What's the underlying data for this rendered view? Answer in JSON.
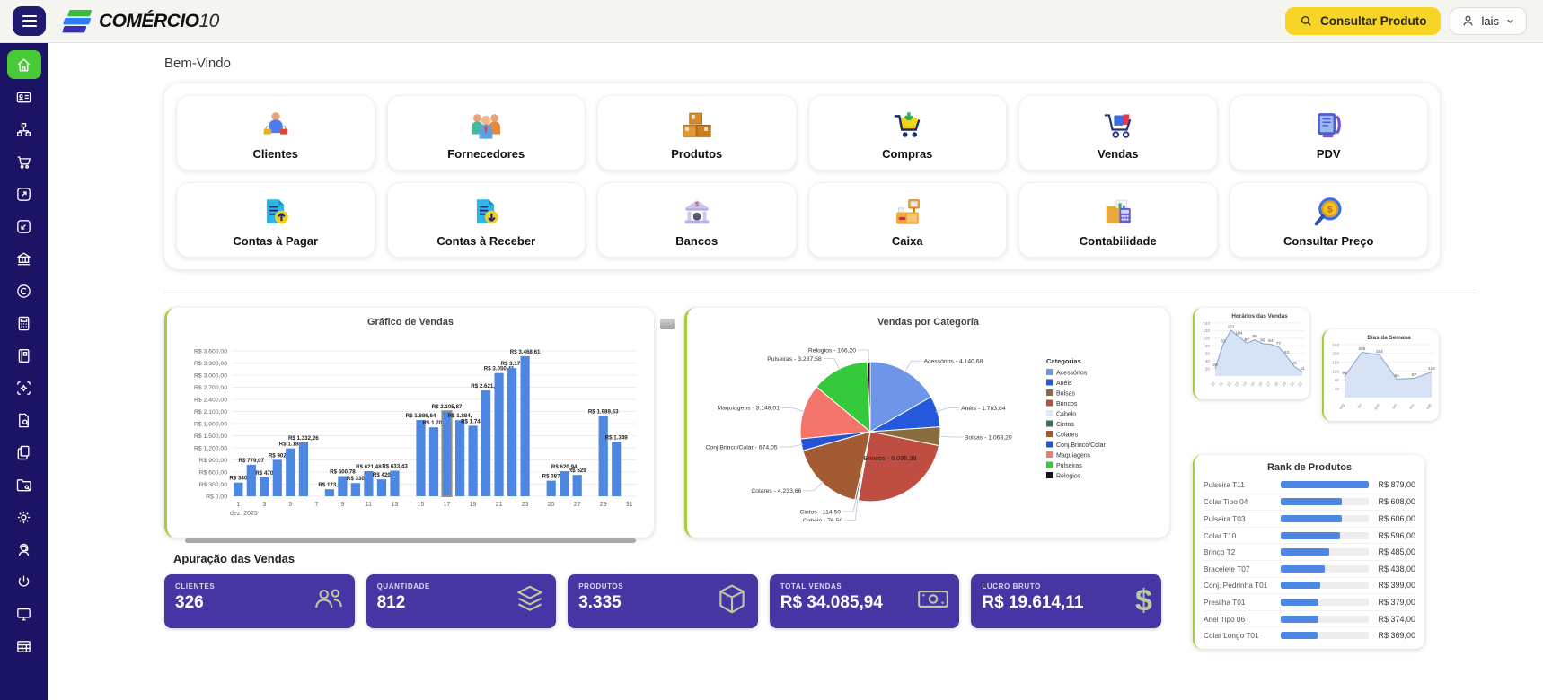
{
  "theme": {
    "sidebar_bg": "#1b1464",
    "active_green": "#47ca35",
    "accent_edge": "#a6ce39",
    "button_yellow": "#f7d526",
    "stat_purple": "#4636a3",
    "stat_icon_sage": "#b9cba4",
    "bar_blue": "#4d87e2"
  },
  "header": {
    "brand_main": "COMÉRCIO",
    "brand_suffix": "10",
    "search_button": "Consultar Produto",
    "user": "lais"
  },
  "sidebar": {
    "items": [
      {
        "icon": "home-icon",
        "active": true
      },
      {
        "icon": "id-card-icon"
      },
      {
        "icon": "sitemap-icon"
      },
      {
        "icon": "cart-icon"
      },
      {
        "icon": "arrow-out-icon"
      },
      {
        "icon": "arrow-in-icon"
      },
      {
        "icon": "bank-icon"
      },
      {
        "icon": "copyright-icon"
      },
      {
        "icon": "calculator-icon"
      },
      {
        "icon": "notebook-icon"
      },
      {
        "icon": "scan-icon"
      },
      {
        "icon": "document-search-icon"
      },
      {
        "icon": "copy-icon"
      },
      {
        "icon": "folder-wrench-icon"
      },
      {
        "icon": "gear-icon"
      },
      {
        "icon": "support-icon"
      },
      {
        "icon": "power-icon"
      },
      {
        "icon": "monitor-icon"
      },
      {
        "icon": "table-icon"
      }
    ]
  },
  "welcome": "Bem-Vindo",
  "shortcuts": [
    {
      "label": "Clientes",
      "icon": "clientes-icon"
    },
    {
      "label": "Fornecedores",
      "icon": "fornecedores-icon"
    },
    {
      "label": "Produtos",
      "icon": "produtos-icon"
    },
    {
      "label": "Compras",
      "icon": "compras-icon"
    },
    {
      "label": "Vendas",
      "icon": "vendas-icon"
    },
    {
      "label": "PDV",
      "icon": "pdv-icon"
    },
    {
      "label": "Contas à Pagar",
      "icon": "contas-pagar-icon"
    },
    {
      "label": "Contas à Receber",
      "icon": "contas-receber-icon"
    },
    {
      "label": "Bancos",
      "icon": "bancos-icon"
    },
    {
      "label": "Caixa",
      "icon": "caixa-icon"
    },
    {
      "label": "Contabilidade",
      "icon": "contabilidade-icon"
    },
    {
      "label": "Consultar Preço",
      "icon": "consultar-preco-icon"
    }
  ],
  "section_heading": "Apuração das Vendas",
  "stats": [
    {
      "label": "CLIENTES",
      "value": "326",
      "icon": "people-icon"
    },
    {
      "label": "QUANTIDADE",
      "value": "812",
      "icon": "layers-icon"
    },
    {
      "label": "PRODUTOS",
      "value": "3.335",
      "icon": "box-icon"
    },
    {
      "label": "TOTAL VENDAS",
      "value": "R$ 34.085,94",
      "icon": "banknote-icon"
    },
    {
      "label": "LUCRO BRUTO",
      "value": "R$ 19.614,11",
      "icon": "dollar-icon"
    }
  ],
  "chart_data": [
    {
      "type": "bar",
      "title": "Gráfico de Vendas",
      "x_axis_note": "dez. 2025",
      "x_ticks": [
        1,
        3,
        5,
        7,
        9,
        11,
        13,
        15,
        17,
        19,
        21,
        23,
        25,
        27,
        29,
        31
      ],
      "ylim": [
        0,
        3600
      ],
      "y_step": 300,
      "currency_prefix": "R$",
      "selected_day": 17,
      "bars": [
        {
          "day": 1,
          "value": 340,
          "label": "R$ 340"
        },
        {
          "day": 2,
          "value": 779.07,
          "label": "R$ 779,07"
        },
        {
          "day": 3,
          "value": 470,
          "label": "R$ 470"
        },
        {
          "day": 4,
          "value": 902,
          "label": "R$ 902"
        },
        {
          "day": 5,
          "value": 1184,
          "label": "R$ 1.184"
        },
        {
          "day": 6,
          "value": 1332.26,
          "label": "R$ 1.332,26"
        },
        {
          "day": 8,
          "value": 173.9,
          "label": "R$ 173,9"
        },
        {
          "day": 9,
          "value": 500.78,
          "label": "R$ 500,78"
        },
        {
          "day": 10,
          "value": 330,
          "label": "R$ 330"
        },
        {
          "day": 11,
          "value": 621.48,
          "label": "R$ 621,48"
        },
        {
          "day": 12,
          "value": 420,
          "label": "R$ 420"
        },
        {
          "day": 13,
          "value": 633.43,
          "label": "R$ 633,43"
        },
        {
          "day": 15,
          "value": 1886.64,
          "label": "R$ 1.886,64"
        },
        {
          "day": 16,
          "value": 1707,
          "label": "R$ 1.707"
        },
        {
          "day": 17,
          "value": 2105.87,
          "label": "R$ 2.105,87"
        },
        {
          "day": 18,
          "value": 1884,
          "label": "R$ 1.884,"
        },
        {
          "day": 19,
          "value": 1747,
          "label": "R$ 1.747,"
        },
        {
          "day": 20,
          "value": 2621,
          "label": "R$ 2.621,00"
        },
        {
          "day": 21,
          "value": 3050.41,
          "label": "R$ 3.050,41"
        },
        {
          "day": 22,
          "value": 3176,
          "label": "R$ 3.176"
        },
        {
          "day": 23,
          "value": 3468.61,
          "label": "R$ 3.468,61"
        },
        {
          "day": 25,
          "value": 387,
          "label": "R$ 387"
        },
        {
          "day": 26,
          "value": 620.94,
          "label": "R$ 620,94"
        },
        {
          "day": 27,
          "value": 529,
          "label": "R$ 529"
        },
        {
          "day": 29,
          "value": 1989.63,
          "label": "R$ 1.989,63"
        },
        {
          "day": 30,
          "value": 1349,
          "label": "R$ 1.349"
        }
      ]
    },
    {
      "type": "pie",
      "title": "Vendas por Categoria",
      "legend_title": "Categorias",
      "slices": [
        {
          "label": "Acessórios",
          "value": 4140.68,
          "display": "Acessórios - 4.140,68",
          "color": "#6e95e8"
        },
        {
          "label": "Anéis",
          "value": 1783.84,
          "display": "Anéis - 1.783,84",
          "color": "#2558dd"
        },
        {
          "label": "Bolsas",
          "value": 1063.2,
          "display": "Bolsas - 1.063,20",
          "color": "#8a6d3f"
        },
        {
          "label": "Brincos",
          "value": 6095.39,
          "display": "Brincos - 6.095,39",
          "color": "#bf4d41"
        },
        {
          "label": "Cabelo",
          "value": 76.5,
          "display": "Cabelo - 76,50",
          "color": "#dce9f8"
        },
        {
          "label": "Cintos",
          "value": 114.5,
          "display": "Cintos - 114,50",
          "color": "#3d6b68"
        },
        {
          "label": "Colares",
          "value": 4233.66,
          "display": "Colares - 4.233,66",
          "color": "#a35b33"
        },
        {
          "label": "Conj.Brinco/Colar",
          "value": 674.05,
          "display": "Conj.Brinco/Colar - 674,05",
          "color": "#2453d8"
        },
        {
          "label": "Maquiagens",
          "value": 3148.01,
          "display": "Maquiagens - 3.148,01",
          "color": "#f4756b"
        },
        {
          "label": "Pulseiras",
          "value": 3287.58,
          "display": "Pulseiras - 3.287,58",
          "color": "#35c93c"
        },
        {
          "label": "Relogios",
          "value": 166.2,
          "display": "Relogios - 166,20",
          "color": "#141414"
        }
      ]
    },
    {
      "type": "area",
      "title": "Horários das Vendas",
      "x": [
        "10",
        "11",
        "12",
        "13",
        "14",
        "15",
        "16",
        "17",
        "18",
        "19",
        "20",
        "21"
      ],
      "values": [
        20,
        83,
        121,
        104,
        87,
        96,
        86,
        84,
        77,
        53,
        25,
        11
      ],
      "ylim": [
        0,
        140
      ],
      "y_step": 20
    },
    {
      "type": "area",
      "title": "Dias da Semana",
      "x": [
        "seg",
        "ter",
        "qua",
        "qui",
        "sex",
        "sáb"
      ],
      "values": [
        96,
        205,
        194,
        84,
        87,
        116
      ],
      "ylim": [
        0,
        240
      ],
      "y_step": 40
    },
    {
      "type": "hbar",
      "title": "Rank de Produtos",
      "max": 879,
      "items": [
        {
          "label": "Pulseira T11",
          "value": 879,
          "display": "R$ 879,00"
        },
        {
          "label": "Colar Tipo 04",
          "value": 608,
          "display": "R$ 608,00"
        },
        {
          "label": "Pulseira T03",
          "value": 606,
          "display": "R$ 606,00"
        },
        {
          "label": "Colar T10",
          "value": 596,
          "display": "R$ 596,00"
        },
        {
          "label": "Brinco T2",
          "value": 485,
          "display": "R$ 485,00"
        },
        {
          "label": "Bracelete T07",
          "value": 438,
          "display": "R$ 438,00"
        },
        {
          "label": "Conj. Pedrinha T01",
          "value": 399,
          "display": "R$ 399,00"
        },
        {
          "label": "Presilha T01",
          "value": 379,
          "display": "R$ 379,00"
        },
        {
          "label": "Anel Tipo 06",
          "value": 374,
          "display": "R$ 374,00"
        },
        {
          "label": "Colar Longo T01",
          "value": 369,
          "display": "R$ 369,00"
        }
      ]
    }
  ]
}
